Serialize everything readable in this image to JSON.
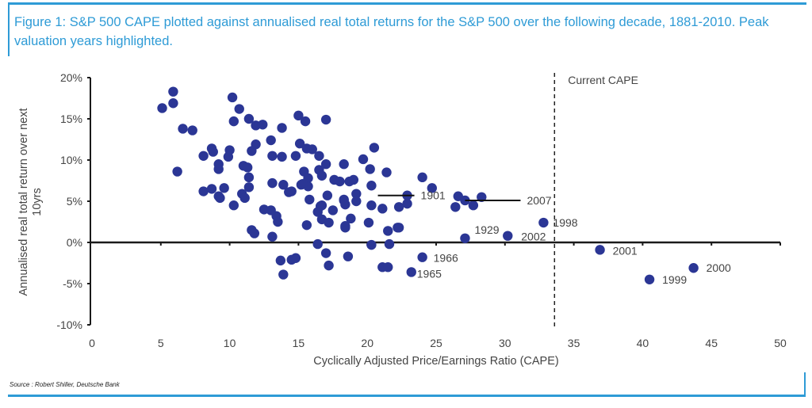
{
  "figure": {
    "title": "Figure 1: S&P 500 CAPE plotted against annualised real total returns for the S&P 500 over the following decade, 1881-2010. Peak valuation years highlighted.",
    "source": "Source : Robert Shiller, Deutsche Bank",
    "accent_color": "#2e9bd6",
    "point_color": "#2b3695"
  },
  "chart_data": {
    "type": "scatter",
    "title": "S&P 500 CAPE plotted against annualised real total returns for the S&P 500 over the following decade, 1881-2010",
    "xlabel": "Cyclically Adjusted Price/Earnings Ratio (CAPE)",
    "ylabel": "Annualised real total return over next 10yrs",
    "xlim": [
      0,
      50
    ],
    "ylim": [
      -10,
      20
    ],
    "x_ticks": [
      0,
      5,
      10,
      15,
      20,
      25,
      30,
      35,
      40,
      45,
      50
    ],
    "x_tick_labels": [
      "0",
      "5",
      "10",
      "15",
      "20",
      "25",
      "30",
      "35",
      "40",
      "45",
      "50"
    ],
    "y_ticks": [
      20,
      15,
      10,
      5,
      0,
      -5,
      -10
    ],
    "y_tick_labels": [
      "20%",
      "15%",
      "10%",
      "5%",
      "0%",
      "-5%",
      "-10%"
    ],
    "grid": false,
    "reference_line": {
      "x": 33.6,
      "label": "Current CAPE",
      "style": "dashed"
    },
    "points": [
      [
        5.1,
        16.3
      ],
      [
        5.9,
        18.3
      ],
      [
        5.9,
        16.9
      ],
      [
        6.6,
        13.8
      ],
      [
        7.3,
        13.6
      ],
      [
        6.2,
        8.6
      ],
      [
        8.1,
        10.5
      ],
      [
        10.2,
        17.6
      ],
      [
        10.7,
        16.2
      ],
      [
        10.3,
        14.7
      ],
      [
        11.4,
        15.0
      ],
      [
        11.9,
        14.2
      ],
      [
        12.4,
        14.3
      ],
      [
        13.8,
        13.9
      ],
      [
        15.0,
        15.4
      ],
      [
        15.5,
        14.7
      ],
      [
        17.0,
        14.9
      ],
      [
        13.0,
        12.4
      ],
      [
        11.9,
        11.9
      ],
      [
        11.6,
        11.1
      ],
      [
        8.7,
        11.4
      ],
      [
        8.8,
        11.0
      ],
      [
        10.0,
        11.2
      ],
      [
        9.9,
        10.4
      ],
      [
        9.2,
        9.5
      ],
      [
        9.2,
        8.9
      ],
      [
        11.0,
        9.3
      ],
      [
        11.3,
        9.1
      ],
      [
        11.4,
        7.9
      ],
      [
        11.4,
        6.7
      ],
      [
        13.1,
        10.5
      ],
      [
        13.8,
        10.4
      ],
      [
        14.8,
        10.5
      ],
      [
        15.1,
        12.0
      ],
      [
        15.6,
        11.4
      ],
      [
        16.0,
        11.3
      ],
      [
        15.4,
        8.6
      ],
      [
        15.7,
        7.8
      ],
      [
        15.2,
        7.0
      ],
      [
        15.7,
        6.8
      ],
      [
        13.1,
        7.2
      ],
      [
        13.9,
        7.0
      ],
      [
        14.3,
        6.1
      ],
      [
        8.1,
        6.2
      ],
      [
        8.7,
        6.5
      ],
      [
        9.6,
        6.6
      ],
      [
        9.2,
        5.6
      ],
      [
        10.9,
        5.9
      ],
      [
        10.3,
        4.5
      ],
      [
        15.8,
        5.2
      ],
      [
        16.5,
        10.5
      ],
      [
        17.0,
        9.5
      ],
      [
        18.3,
        9.5
      ],
      [
        20.5,
        11.5
      ],
      [
        19.7,
        10.1
      ],
      [
        20.2,
        8.9
      ],
      [
        21.4,
        8.5
      ],
      [
        16.5,
        8.8
      ],
      [
        16.7,
        8.1
      ],
      [
        17.6,
        7.6
      ],
      [
        18.0,
        7.4
      ],
      [
        18.7,
        7.4
      ],
      [
        19.0,
        7.6
      ],
      [
        15.3,
        7.1
      ],
      [
        14.5,
        6.2
      ],
      [
        17.1,
        5.7
      ],
      [
        18.3,
        5.2
      ],
      [
        19.2,
        5.9
      ],
      [
        20.3,
        6.9
      ],
      [
        20.3,
        4.5
      ],
      [
        19.2,
        5.0
      ],
      [
        18.4,
        4.6
      ],
      [
        16.6,
        4.4
      ],
      [
        17.5,
        3.9
      ],
      [
        16.7,
        2.8
      ],
      [
        17.2,
        2.4
      ],
      [
        18.4,
        1.8
      ],
      [
        18.8,
        2.9
      ],
      [
        20.1,
        2.4
      ],
      [
        21.5,
        1.4
      ],
      [
        22.2,
        1.8
      ],
      [
        21.1,
        4.1
      ],
      [
        22.3,
        4.3
      ],
      [
        22.9,
        4.7
      ],
      [
        22.3,
        1.8
      ],
      [
        24.0,
        7.9
      ],
      [
        24.7,
        6.6
      ],
      [
        16.4,
        -0.2
      ],
      [
        17.0,
        -1.3
      ],
      [
        17.2,
        -2.8
      ],
      [
        20.3,
        -0.3
      ],
      [
        21.6,
        -0.2
      ],
      [
        18.6,
        -1.7
      ],
      [
        21.1,
        -3.0
      ],
      [
        21.5,
        -3.0
      ],
      [
        13.7,
        -2.2
      ],
      [
        14.5,
        -2.1
      ],
      [
        14.8,
        -1.9
      ],
      [
        13.9,
        -3.9
      ],
      [
        13.1,
        0.7
      ],
      [
        11.6,
        1.5
      ],
      [
        11.8,
        1.1
      ],
      [
        13.4,
        3.2
      ],
      [
        13.5,
        2.5
      ],
      [
        12.5,
        4.0
      ],
      [
        13.0,
        3.9
      ],
      [
        15.6,
        2.1
      ],
      [
        9.3,
        5.4
      ],
      [
        11.1,
        5.4
      ],
      [
        16.7,
        4.5
      ],
      [
        16.4,
        3.7
      ],
      [
        18.4,
        2.0
      ],
      [
        18.3,
        5.1
      ],
      [
        26.6,
        5.6
      ],
      [
        26.4,
        4.3
      ],
      [
        27.7,
        4.5
      ],
      [
        28.3,
        5.5
      ]
    ],
    "highlighted": [
      {
        "label": "1901",
        "x": 22.9,
        "y": 5.7,
        "leader": true
      },
      {
        "label": "2007",
        "x": 27.1,
        "y": 5.1,
        "leader": true
      },
      {
        "label": "1929",
        "x": 27.1,
        "y": 0.5
      },
      {
        "label": "2002",
        "x": 30.2,
        "y": 0.8
      },
      {
        "label": "1966",
        "x": 24.0,
        "y": -1.8
      },
      {
        "label": "1965",
        "x": 23.2,
        "y": -3.6
      },
      {
        "label": "1998",
        "x": 32.8,
        "y": 2.4
      },
      {
        "label": "2001",
        "x": 36.9,
        "y": -0.9
      },
      {
        "label": "1999",
        "x": 40.5,
        "y": -4.5
      },
      {
        "label": "2000",
        "x": 43.7,
        "y": -3.1
      }
    ]
  }
}
